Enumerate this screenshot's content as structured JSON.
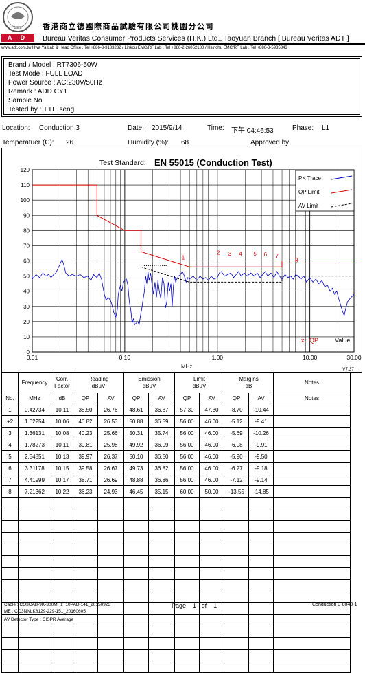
{
  "header": {
    "logo_text": "BUREAU VERITAS 1828",
    "adt_text": "A D T",
    "chinese_title": "香港商立德國際商品試驗有限公司桃園分公司",
    "english_title": "Bureau Veritas Consumer Products Services (H.K.) Ltd., Taoyuan Branch [ Bureau Veritas ADT ]",
    "address_line": "www.adt.com.tw     Hwa Ya Lab & Head Office , Tel +886-3-3183232  /  Linkou EMC/RF Lab , Tel +886-2-26052180  /  Hsinchu EMC/RF Lab , Tel +886-3-5935343"
  },
  "info": {
    "brand_model": "Brand / Model :  RT7306-50W",
    "test_mode": "Test Mode :  FULL LOAD",
    "power_source": "Power Source :  AC:230V/50Hz",
    "remark": "Remark :  ADD CY1",
    "sample_no": "Sample No.",
    "tested_by": "Tested by :  T H Tseng"
  },
  "meta": {
    "location_label": "Location:",
    "location_value": "Conduction 3",
    "date_label": "Date:",
    "date_value": "2015/9/14",
    "time_label": "Time:",
    "time_value": "下午 04:46:53",
    "phase_label": "Phase:",
    "phase_value": "L1",
    "temp_label": "Temperatuer (C):",
    "temp_value": "26",
    "humidity_label": "Humidity (%):",
    "humidity_value": "68",
    "approved_label": "Approved by:"
  },
  "chart_data": {
    "type": "line",
    "title_label": "Test Standard:",
    "title": "EN 55015 (Conduction Test)",
    "xlabel": "MHz",
    "xscale": "log",
    "xlim": [
      0.01,
      30
    ],
    "ylim": [
      0,
      120
    ],
    "x_ticks": [
      "0.01",
      "0.10",
      "1.00",
      "10.00",
      "30.00"
    ],
    "y_ticks": [
      "0",
      "10",
      "20",
      "30",
      "40",
      "50",
      "60",
      "70",
      "80",
      "90",
      "100",
      "110",
      "120"
    ],
    "version": "V7.37",
    "legend": [
      {
        "name": "PK Trace",
        "color": "#0000c8",
        "style": "solid"
      },
      {
        "name": "QP Limit",
        "color": "#d00000",
        "style": "solid"
      },
      {
        "name": "AV Limit",
        "color": "#000000",
        "style": "dashed"
      }
    ],
    "value_note_marker": "x : QP",
    "value_note_label": "Value",
    "colors": {
      "trace": "#0000c8",
      "qp_limit": "#d00000",
      "av_limit": "#000000",
      "marker": "#d00000"
    },
    "qp_limit": [
      [
        0.009,
        110
      ],
      [
        0.05,
        110
      ],
      [
        0.05,
        90
      ],
      [
        0.1,
        80
      ],
      [
        0.15,
        80
      ],
      [
        0.15,
        66
      ],
      [
        0.5,
        56
      ],
      [
        5,
        56
      ],
      [
        5,
        60
      ],
      [
        30,
        60
      ]
    ],
    "av_limit": [
      [
        0.15,
        56
      ],
      [
        0.5,
        46
      ],
      [
        5,
        46
      ],
      [
        5,
        50
      ],
      [
        30,
        50
      ]
    ],
    "pk_trace": [
      [
        0.009,
        50
      ],
      [
        0.01,
        48
      ],
      [
        0.011,
        51
      ],
      [
        0.012,
        49
      ],
      [
        0.013,
        52
      ],
      [
        0.014,
        50
      ],
      [
        0.015,
        51
      ],
      [
        0.016,
        49
      ],
      [
        0.017,
        51
      ],
      [
        0.018,
        52
      ],
      [
        0.019,
        55
      ],
      [
        0.02,
        58
      ],
      [
        0.021,
        61
      ],
      [
        0.022,
        57
      ],
      [
        0.023,
        52
      ],
      [
        0.025,
        50
      ],
      [
        0.027,
        51
      ],
      [
        0.03,
        50
      ],
      [
        0.033,
        51
      ],
      [
        0.036,
        49
      ],
      [
        0.04,
        50
      ],
      [
        0.043,
        47
      ],
      [
        0.046,
        51
      ],
      [
        0.05,
        49
      ],
      [
        0.053,
        52
      ],
      [
        0.056,
        48
      ],
      [
        0.06,
        38
      ],
      [
        0.063,
        34
      ],
      [
        0.066,
        36
      ],
      [
        0.07,
        34
      ],
      [
        0.073,
        31
      ],
      [
        0.076,
        26
      ],
      [
        0.08,
        23
      ],
      [
        0.083,
        28
      ],
      [
        0.085,
        38
      ],
      [
        0.088,
        42
      ],
      [
        0.09,
        44
      ],
      [
        0.093,
        40
      ],
      [
        0.097,
        46
      ],
      [
        0.1,
        47
      ],
      [
        0.104,
        48
      ],
      [
        0.108,
        44
      ],
      [
        0.112,
        33
      ],
      [
        0.116,
        28
      ],
      [
        0.12,
        19
      ],
      [
        0.124,
        22
      ],
      [
        0.128,
        18
      ],
      [
        0.133,
        19
      ],
      [
        0.138,
        20
      ],
      [
        0.143,
        18
      ],
      [
        0.148,
        24
      ],
      [
        0.153,
        29
      ],
      [
        0.158,
        35
      ],
      [
        0.163,
        40
      ],
      [
        0.168,
        50
      ],
      [
        0.173,
        45
      ],
      [
        0.178,
        53
      ],
      [
        0.183,
        47
      ],
      [
        0.19,
        52
      ],
      [
        0.197,
        44
      ],
      [
        0.205,
        38
      ],
      [
        0.212,
        46
      ],
      [
        0.22,
        36
      ],
      [
        0.228,
        47
      ],
      [
        0.236,
        40
      ],
      [
        0.245,
        35
      ],
      [
        0.255,
        49
      ],
      [
        0.265,
        45
      ],
      [
        0.275,
        29
      ],
      [
        0.285,
        33
      ],
      [
        0.295,
        46
      ],
      [
        0.305,
        40
      ],
      [
        0.315,
        45
      ],
      [
        0.325,
        30
      ],
      [
        0.335,
        43
      ],
      [
        0.345,
        50
      ],
      [
        0.355,
        46
      ],
      [
        0.365,
        48
      ],
      [
        0.38,
        50
      ],
      [
        0.4,
        51
      ],
      [
        0.42,
        53
      ],
      [
        0.44,
        50
      ],
      [
        0.46,
        46
      ],
      [
        0.48,
        49
      ],
      [
        0.5,
        48
      ],
      [
        0.55,
        50
      ],
      [
        0.6,
        47
      ],
      [
        0.65,
        50
      ],
      [
        0.7,
        48
      ],
      [
        0.75,
        49
      ],
      [
        0.8,
        47
      ],
      [
        0.86,
        50
      ],
      [
        0.92,
        48
      ],
      [
        1.0,
        49
      ],
      [
        1.05,
        52
      ],
      [
        1.1,
        53
      ],
      [
        1.2,
        50
      ],
      [
        1.3,
        51
      ],
      [
        1.4,
        52
      ],
      [
        1.5,
        49
      ],
      [
        1.6,
        51
      ],
      [
        1.7,
        53
      ],
      [
        1.8,
        50
      ],
      [
        1.95,
        52
      ],
      [
        2.1,
        50
      ],
      [
        2.3,
        52
      ],
      [
        2.5,
        50
      ],
      [
        2.7,
        52
      ],
      [
        2.9,
        49
      ],
      [
        3.1,
        51
      ],
      [
        3.3,
        53
      ],
      [
        3.5,
        50
      ],
      [
        3.8,
        52
      ],
      [
        4.1,
        49
      ],
      [
        4.4,
        53
      ],
      [
        4.7,
        50
      ],
      [
        5.0,
        48
      ],
      [
        5.4,
        51
      ],
      [
        5.8,
        49
      ],
      [
        6.2,
        50
      ],
      [
        6.6,
        48
      ],
      [
        7.0,
        51
      ],
      [
        7.5,
        50
      ],
      [
        8.0,
        48
      ],
      [
        8.6,
        50
      ],
      [
        9.2,
        46
      ],
      [
        10.0,
        49
      ],
      [
        10.8,
        46
      ],
      [
        11.6,
        48
      ],
      [
        12.5,
        45
      ],
      [
        13.5,
        47
      ],
      [
        14.5,
        43
      ],
      [
        15.5,
        44
      ],
      [
        16.5,
        40
      ],
      [
        17.5,
        42
      ],
      [
        18.5,
        38
      ],
      [
        19.5,
        40
      ],
      [
        20.5,
        35
      ],
      [
        21.5,
        31
      ],
      [
        22.5,
        27
      ],
      [
        23.5,
        24
      ],
      [
        24.5,
        29
      ],
      [
        25.5,
        33
      ],
      [
        27.0,
        35
      ],
      [
        29.0,
        37
      ],
      [
        30.0,
        38
      ]
    ],
    "markers": [
      {
        "label": "1",
        "x": 0.42734,
        "y": 61
      },
      {
        "label": "2",
        "x": 1.02254,
        "y": 64
      },
      {
        "label": "3",
        "x": 1.36131,
        "y": 63.5
      },
      {
        "label": "4",
        "x": 1.78273,
        "y": 63.5
      },
      {
        "label": "5",
        "x": 2.54851,
        "y": 63.5
      },
      {
        "label": "6",
        "x": 3.31178,
        "y": 63
      },
      {
        "label": "7",
        "x": 4.41999,
        "y": 62
      },
      {
        "label": "8",
        "x": 7.21362,
        "y": 59
      }
    ],
    "av_markers": [
      0.166,
      0.175,
      0.184,
      0.193,
      0.203,
      0.213,
      0.223,
      0.235,
      0.248,
      0.26,
      0.272,
      0.285
    ]
  },
  "table": {
    "header1": [
      "",
      "Frequency",
      "Corr.\nFactor",
      "Reading\ndBuV",
      "",
      "Emission\ndBuV",
      "",
      "Limit\ndBuV",
      "",
      "Margins\ndB",
      "",
      "Notes"
    ],
    "header_labels": {
      "frequency": "Frequency",
      "corr": "Corr.",
      "factor": "Factor",
      "reading": "Reading",
      "emission": "Emission",
      "limit": "Limit",
      "margins": "Margins",
      "unit_dbuv": "dBuV",
      "unit_db": "dB",
      "notes": "Notes"
    },
    "header2": [
      "No.",
      "MHz",
      "dB",
      "QP",
      "AV",
      "QP",
      "AV",
      "QP",
      "AV",
      "QP",
      "AV",
      "Notes"
    ],
    "rows": [
      [
        "1",
        "0.42734",
        "10.11",
        "38.50",
        "26.76",
        "48.61",
        "36.87",
        "57.30",
        "47.30",
        "-8.70",
        "-10.44",
        ""
      ],
      [
        "+2",
        "1.02254",
        "10.06",
        "40.82",
        "26.53",
        "50.88",
        "36.59",
        "56.00",
        "46.00",
        "-5.12",
        "-9.41",
        ""
      ],
      [
        "3",
        "1.36131",
        "10.08",
        "40.23",
        "25.66",
        "50.31",
        "35.74",
        "56.00",
        "46.00",
        "-5.69",
        "-10.26",
        ""
      ],
      [
        "4",
        "1.78273",
        "10.11",
        "39.81",
        "25.98",
        "49.92",
        "36.09",
        "56.00",
        "46.00",
        "-6.08",
        "-9.91",
        ""
      ],
      [
        "5",
        "2.54851",
        "10.13",
        "39.97",
        "26.37",
        "50.10",
        "36.50",
        "56.00",
        "46.00",
        "-5.90",
        "-9.50",
        ""
      ],
      [
        "6",
        "3.31178",
        "10.15",
        "39.58",
        "26.67",
        "49.73",
        "36.82",
        "56.00",
        "46.00",
        "-6.27",
        "-9.18",
        ""
      ],
      [
        "7",
        "4.41999",
        "10.17",
        "38.71",
        "26.69",
        "48.88",
        "36.86",
        "56.00",
        "46.00",
        "-7.12",
        "-9.14",
        ""
      ],
      [
        "8",
        "7.21362",
        "10.22",
        "36.23",
        "24.93",
        "46.45",
        "35.15",
        "60.00",
        "50.00",
        "-13.55",
        "-14.85",
        ""
      ]
    ]
  },
  "footer": {
    "cable": "Cable : CO3CAB-9K-300MHz+10PAD-141_20150923",
    "me": "ME : CO3NNLK8129-229-151_20160605",
    "detector": "AV Detector Type : CISPR Average",
    "page_label": "Page",
    "page_num": "1",
    "of_label": "of",
    "page_total": "1",
    "doc_id": "Conduction 3-0043-1"
  }
}
